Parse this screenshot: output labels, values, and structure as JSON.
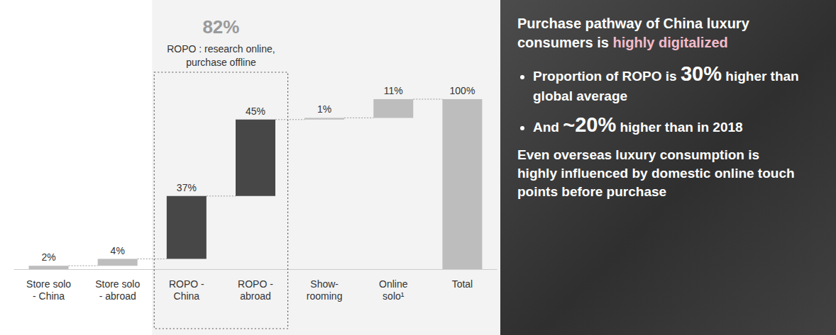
{
  "chart_data": {
    "type": "waterfall",
    "categories": [
      "Store solo - China",
      "Store solo - abroad",
      "ROPO - China",
      "ROPO - abroad",
      "Show-rooming",
      "Online solo¹",
      "Total"
    ],
    "values": [
      2,
      4,
      37,
      45,
      1,
      11,
      100
    ],
    "value_labels": [
      "2%",
      "4%",
      "37%",
      "45%",
      "1%",
      "11%",
      "100%"
    ],
    "colors": [
      "#bdbdbd",
      "#bdbdbd",
      "#474747",
      "#474747",
      "#bdbdbd",
      "#bdbdbd",
      "#bdbdbd"
    ],
    "ylim": [
      0,
      100
    ],
    "grid": false,
    "data_labels": true,
    "tick_labels": "x",
    "annotations": [
      {
        "label": "82%",
        "text": "ROPO : research online, purchase offline",
        "categories": [
          "ROPO - China",
          "ROPO - abroad"
        ]
      }
    ]
  },
  "side_panel": {
    "title": [
      {
        "text": "Purchase pathway of China luxury consumers is "
      },
      {
        "text": "highly digitalized",
        "highlight": true
      }
    ],
    "bullets": [
      [
        {
          "text": "Proportion of ROPO is "
        },
        {
          "text": "30%",
          "highlight": true
        },
        {
          "text": " higher than global average"
        }
      ],
      [
        {
          "text": "And "
        },
        {
          "text": "~20%",
          "highlight": true
        },
        {
          "text": " higher than in 2018"
        }
      ]
    ],
    "note": "Even overseas luxury consumption is highly influenced by domestic online touch points before purchase"
  }
}
